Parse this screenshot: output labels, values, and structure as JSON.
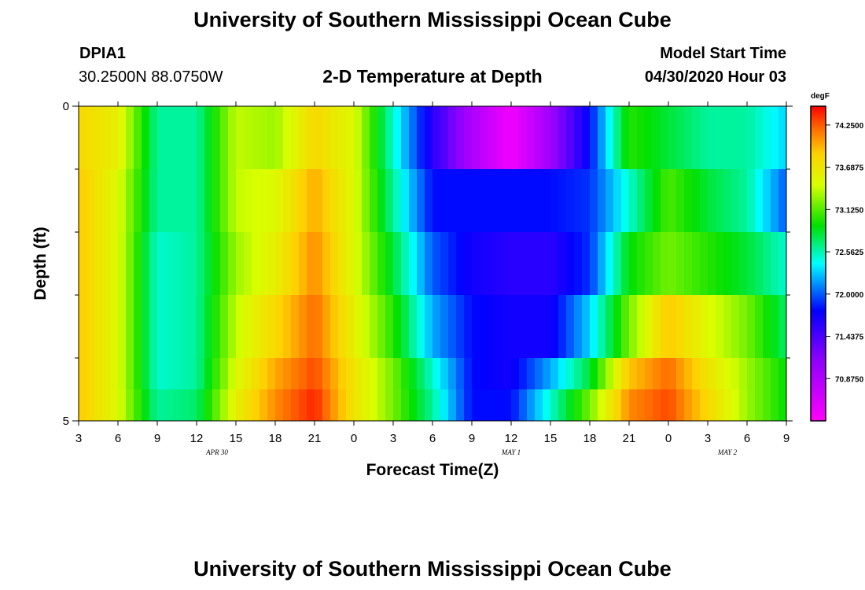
{
  "header": {
    "title": "University of Southern Mississippi Ocean Cube",
    "station": "DPIA1",
    "coords": "30.2500N 88.0750W",
    "plot_title": "2-D Temperature at Depth",
    "model_start_label": "Model Start Time",
    "model_start_value": "04/30/2020 Hour 03"
  },
  "footer": {
    "title": "University of Southern Mississippi Ocean Cube"
  },
  "colorbar": {
    "unit": "degF",
    "labels": [
      "74.2500",
      "73.6875",
      "73.1250",
      "72.5625",
      "72.0000",
      "71.4375",
      "70.8750"
    ]
  },
  "chart_data": {
    "type": "heatmap",
    "title": "2-D Temperature at Depth",
    "xlabel": "Forecast Time(Z)",
    "ylabel": "Depth (ft)",
    "x_tick_labels": [
      "3",
      "6",
      "9",
      "12",
      "15",
      "18",
      "21",
      "0",
      "3",
      "6",
      "9",
      "12",
      "15",
      "18",
      "21",
      "0",
      "3",
      "6",
      "9"
    ],
    "x_date_labels": [
      "APR 30",
      "MAY 1",
      "MAY 2"
    ],
    "y_tick_labels": [
      "0",
      "5"
    ],
    "ylim": [
      0,
      5
    ],
    "color_range": [
      70.3125,
      74.5
    ],
    "unit": "degF",
    "x_hours": [
      3,
      6,
      9,
      12,
      15,
      18,
      21,
      24,
      27,
      30,
      33,
      36,
      39,
      42,
      45,
      48,
      51,
      54,
      57
    ],
    "depth_rows_ft": [
      0.25,
      0.75,
      1.25,
      1.75,
      2.25,
      2.75,
      3.25,
      3.75,
      4.25,
      4.75
    ],
    "temperature_rows": [
      [
        73.8,
        73.6,
        72.6,
        72.6,
        73.4,
        73.3,
        73.8,
        73.5,
        72.5,
        71.6,
        70.9,
        70.4,
        71.0,
        71.8,
        73.0,
        72.8,
        72.6,
        72.6,
        72.3
      ],
      [
        73.8,
        73.6,
        72.6,
        72.6,
        73.4,
        73.3,
        73.8,
        73.5,
        72.5,
        71.6,
        70.9,
        70.4,
        71.0,
        71.8,
        73.0,
        72.8,
        72.6,
        72.6,
        72.3
      ],
      [
        73.9,
        73.5,
        72.6,
        72.6,
        73.4,
        73.5,
        74.0,
        73.5,
        72.6,
        71.8,
        71.8,
        71.8,
        71.8,
        71.9,
        72.5,
        73.1,
        72.8,
        72.6,
        72.0
      ],
      [
        73.9,
        73.5,
        72.6,
        72.6,
        73.4,
        73.5,
        74.0,
        73.5,
        72.6,
        71.8,
        71.8,
        71.8,
        71.8,
        71.9,
        72.5,
        73.1,
        72.8,
        72.6,
        72.0
      ],
      [
        73.9,
        73.5,
        72.5,
        72.6,
        73.3,
        73.6,
        74.1,
        73.5,
        72.8,
        72.0,
        71.7,
        71.6,
        71.6,
        71.9,
        72.9,
        73.2,
        73.0,
        72.8,
        72.5
      ],
      [
        73.9,
        73.5,
        72.5,
        72.6,
        73.3,
        73.6,
        74.1,
        73.5,
        72.8,
        72.0,
        71.7,
        71.6,
        71.6,
        71.9,
        72.9,
        73.2,
        73.0,
        72.8,
        72.5
      ],
      [
        73.9,
        73.5,
        72.5,
        72.6,
        73.4,
        73.8,
        74.2,
        73.6,
        73.0,
        72.2,
        71.8,
        71.7,
        71.7,
        72.3,
        73.2,
        73.9,
        73.5,
        73.2,
        72.7
      ],
      [
        73.9,
        73.5,
        72.5,
        72.6,
        73.4,
        73.8,
        74.2,
        73.6,
        73.0,
        72.2,
        71.8,
        71.7,
        71.7,
        72.3,
        73.2,
        73.9,
        73.5,
        73.2,
        72.7
      ],
      [
        73.9,
        73.5,
        72.5,
        72.6,
        73.5,
        74.0,
        74.3,
        73.7,
        73.2,
        72.5,
        71.8,
        71.7,
        72.2,
        72.8,
        73.9,
        74.2,
        73.7,
        73.3,
        72.9
      ],
      [
        73.9,
        73.5,
        72.6,
        72.7,
        73.6,
        74.1,
        74.4,
        73.7,
        73.2,
        72.6,
        71.8,
        71.8,
        72.5,
        73.2,
        74.1,
        74.3,
        73.8,
        73.3,
        72.9
      ]
    ]
  }
}
